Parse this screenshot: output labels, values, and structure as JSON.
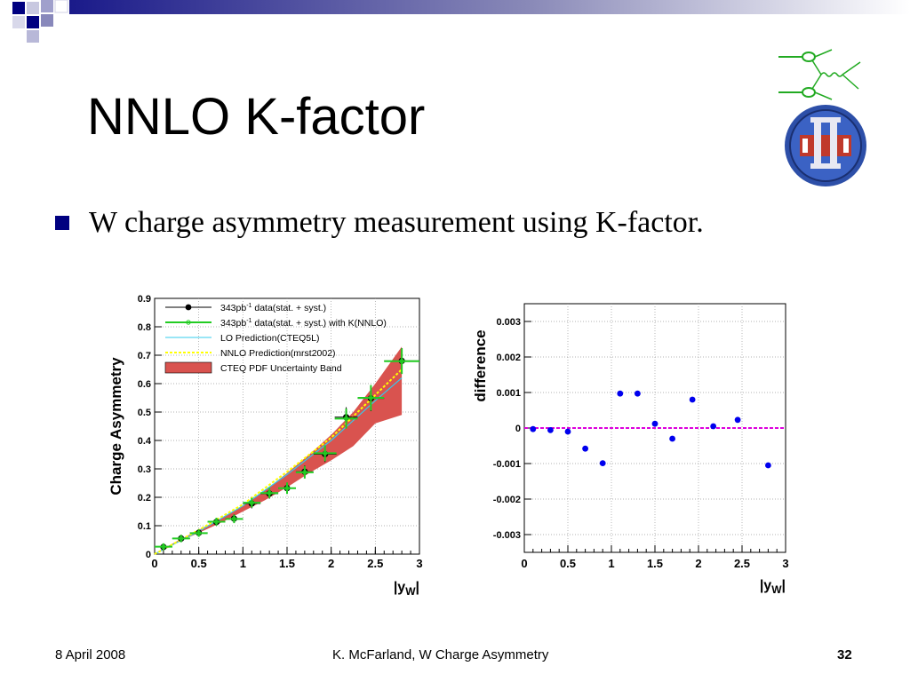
{
  "slide": {
    "title": "NNLO K-factor",
    "bullet": "W charge asymmetry measurement using K-factor.",
    "footer_date": "8 April 2008",
    "footer_author": "K. McFarland, W Charge Asymmetry",
    "page_number": "32",
    "accent_color": "#000080"
  },
  "chart_data": [
    {
      "type": "scatter",
      "ylabel": "Charge Asymmetry",
      "xlabel_main": "|y",
      "xlabel_sub": "W",
      "xlabel_end": "|",
      "xlim": [
        0,
        3
      ],
      "ylim": [
        0,
        0.9
      ],
      "x_ticks": [
        "0",
        "0.5",
        "1",
        "1.5",
        "2",
        "2.5",
        "3"
      ],
      "y_ticks": [
        "0",
        "0.1",
        "0.2",
        "0.3",
        "0.4",
        "0.5",
        "0.6",
        "0.7",
        "0.8",
        "0.9"
      ],
      "legend": [
        {
          "pre": "343pb",
          "sup": "-1",
          "post": " data(stat. + syst.)"
        },
        {
          "pre": "343pb",
          "sup": "-1",
          "post": " data(stat. + syst.) with K(NNLO)"
        },
        {
          "pre": "LO Prediction(CTEQ5L)",
          "sup": "",
          "post": ""
        },
        {
          "pre": "NNLO Prediction(mrst2002)",
          "sup": "",
          "post": ""
        },
        {
          "pre": "CTEQ PDF Uncertainty Band",
          "sup": "",
          "post": ""
        }
      ],
      "series": [
        {
          "name": "343pb-1 data(stat. + syst.)",
          "color": "#000000",
          "x": [
            0.1,
            0.3,
            0.5,
            0.7,
            0.9,
            1.1,
            1.3,
            1.5,
            1.7,
            1.93,
            2.17,
            2.45,
            2.8
          ],
          "y": [
            0.025,
            0.055,
            0.075,
            0.113,
            0.125,
            0.178,
            0.213,
            0.232,
            0.29,
            0.352,
            0.482,
            0.548,
            0.68
          ],
          "xerr": [
            0.1,
            0.1,
            0.1,
            0.1,
            0.1,
            0.1,
            0.1,
            0.1,
            0.1,
            0.13,
            0.13,
            0.15,
            0.2
          ],
          "yerr": [
            0.012,
            0.013,
            0.013,
            0.014,
            0.015,
            0.017,
            0.018,
            0.02,
            0.022,
            0.028,
            0.035,
            0.045,
            0.045
          ]
        },
        {
          "name": "343pb-1 data(stat. + syst.) with K(NNLO)",
          "color": "#22cc22",
          "x": [
            0.1,
            0.3,
            0.5,
            0.7,
            0.9,
            1.1,
            1.3,
            1.5,
            1.7,
            1.93,
            2.17,
            2.45,
            2.8
          ],
          "y": [
            0.026,
            0.055,
            0.074,
            0.114,
            0.124,
            0.181,
            0.215,
            0.232,
            0.288,
            0.355,
            0.477,
            0.55,
            0.679
          ],
          "xerr": [
            0.1,
            0.1,
            0.1,
            0.1,
            0.1,
            0.1,
            0.1,
            0.1,
            0.1,
            0.13,
            0.13,
            0.15,
            0.2
          ],
          "yerr": [
            0.012,
            0.013,
            0.013,
            0.014,
            0.015,
            0.017,
            0.018,
            0.02,
            0.022,
            0.028,
            0.035,
            0.045,
            0.045
          ]
        },
        {
          "name": "LO Prediction(CTEQ5L)",
          "color": "#33ccee",
          "x": [
            0,
            0.5,
            1.0,
            1.5,
            2.0,
            2.5,
            2.8
          ],
          "y": [
            0.0,
            0.08,
            0.17,
            0.28,
            0.4,
            0.54,
            0.62
          ]
        },
        {
          "name": "NNLO Prediction(mrst2002)",
          "color": "#ffff00",
          "x": [
            0,
            0.5,
            1.0,
            1.5,
            2.0,
            2.5,
            2.8
          ],
          "y": [
            0.0,
            0.085,
            0.175,
            0.29,
            0.41,
            0.56,
            0.65
          ]
        },
        {
          "name": "CTEQ PDF Uncertainty Band",
          "color": "#d9534f",
          "x": [
            0.0,
            0.25,
            0.5,
            0.75,
            1.0,
            1.25,
            1.5,
            1.75,
            2.0,
            2.25,
            2.5,
            2.8
          ],
          "upper": [
            0.002,
            0.045,
            0.085,
            0.125,
            0.17,
            0.225,
            0.285,
            0.35,
            0.42,
            0.5,
            0.6,
            0.73
          ],
          "lower": [
            0.0,
            0.04,
            0.075,
            0.11,
            0.15,
            0.19,
            0.235,
            0.285,
            0.33,
            0.38,
            0.46,
            0.49
          ]
        }
      ]
    },
    {
      "type": "scatter",
      "ylabel": "difference",
      "xlabel_main": "|y",
      "xlabel_sub": "W",
      "xlabel_end": "|",
      "xlim": [
        0,
        3
      ],
      "ylim": [
        -0.0035,
        0.0035
      ],
      "x_ticks": [
        "0",
        "0.5",
        "1",
        "1.5",
        "2",
        "2.5",
        "3"
      ],
      "y_tick_values": [
        0.003,
        0.002,
        0.001,
        0,
        -0.001,
        -0.002,
        -0.003
      ],
      "y_ticks": [
        "0.003",
        "0.002",
        "0.001",
        "0",
        "-0.001",
        "-0.002",
        "-0.003"
      ],
      "reference_line": {
        "y": 0,
        "color": "#dd00dd"
      },
      "series": [
        {
          "color": "#0000ee",
          "x": [
            0.1,
            0.3,
            0.5,
            0.7,
            0.9,
            1.1,
            1.3,
            1.5,
            1.7,
            1.93,
            2.17,
            2.45,
            2.8
          ],
          "y": [
            -3e-05,
            -6e-05,
            -0.0001,
            -0.00058,
            -0.00099,
            0.00097,
            0.00097,
            0.00012,
            -0.0003,
            0.0008,
            5e-05,
            0.00023,
            -0.00105
          ]
        }
      ]
    }
  ]
}
